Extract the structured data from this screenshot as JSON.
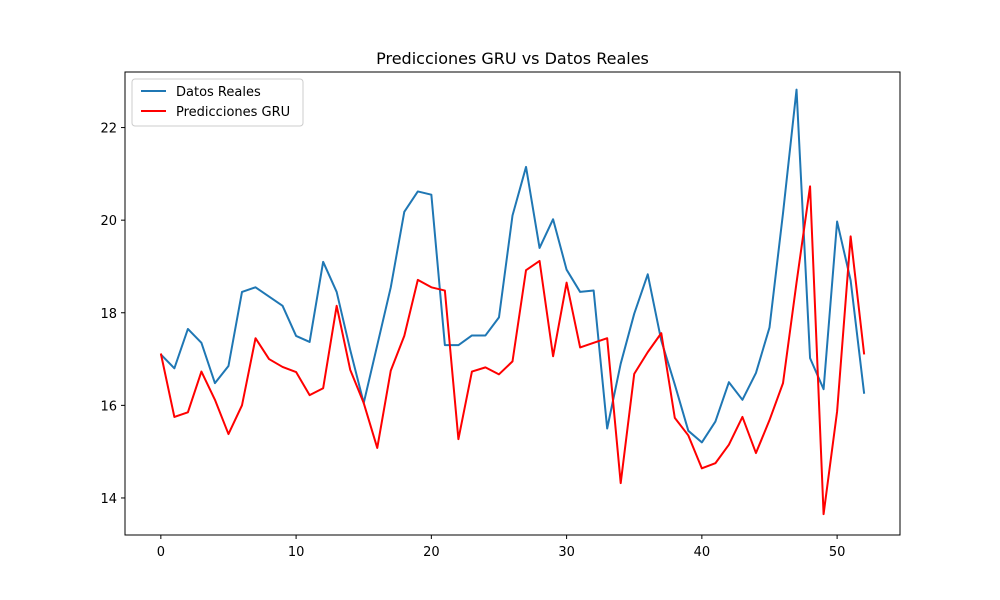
{
  "chart_data": {
    "type": "line",
    "title": "Predicciones GRU vs Datos Reales",
    "xlabel": "",
    "ylabel": "",
    "xlim": [
      -2.65,
      54.65
    ],
    "ylim": [
      13.2,
      23.2
    ],
    "xticks": [
      0,
      10,
      20,
      30,
      40,
      50
    ],
    "yticks": [
      14,
      16,
      18,
      20,
      22
    ],
    "grid": false,
    "legend_position": "upper-left",
    "x": [
      0,
      1,
      2,
      3,
      4,
      5,
      6,
      7,
      8,
      9,
      10,
      11,
      12,
      13,
      14,
      15,
      16,
      17,
      18,
      19,
      20,
      21,
      22,
      23,
      24,
      25,
      26,
      27,
      28,
      29,
      30,
      31,
      32,
      33,
      34,
      35,
      36,
      37,
      38,
      39,
      40,
      41,
      42,
      43,
      44,
      45,
      46,
      47,
      48,
      49,
      50,
      51,
      52
    ],
    "series": [
      {
        "name": "Datos Reales",
        "color": "#1f77b4",
        "values": [
          17.1,
          16.8,
          17.65,
          17.35,
          16.48,
          16.85,
          18.45,
          18.55,
          18.35,
          18.15,
          17.5,
          17.37,
          19.1,
          18.45,
          17.2,
          16.05,
          17.3,
          18.55,
          20.18,
          20.62,
          20.55,
          17.3,
          17.3,
          17.51,
          17.51,
          17.9,
          20.1,
          21.15,
          19.4,
          20.02,
          18.93,
          18.45,
          18.48,
          15.5,
          16.9,
          17.98,
          18.83,
          17.4,
          16.45,
          15.45,
          15.2,
          15.65,
          16.5,
          16.12,
          16.7,
          17.68,
          20.15,
          22.82,
          17.02,
          16.35,
          19.97,
          18.7,
          16.25
        ]
      },
      {
        "name": "Predicciones GRU",
        "color": "#ff0000",
        "values": [
          17.12,
          15.75,
          15.85,
          16.73,
          16.12,
          15.38,
          16.0,
          17.45,
          17.0,
          16.83,
          16.72,
          16.22,
          16.37,
          18.15,
          16.77,
          16.05,
          15.08,
          16.75,
          17.5,
          18.71,
          18.55,
          18.48,
          15.27,
          16.73,
          16.82,
          16.67,
          16.95,
          18.92,
          19.12,
          17.06,
          18.65,
          17.25,
          17.35,
          17.45,
          14.32,
          16.68,
          17.15,
          17.56,
          15.73,
          15.35,
          14.64,
          14.75,
          15.15,
          15.75,
          14.97,
          15.68,
          16.48,
          18.65,
          20.73,
          13.65,
          15.87,
          19.65,
          17.1
        ]
      }
    ]
  }
}
